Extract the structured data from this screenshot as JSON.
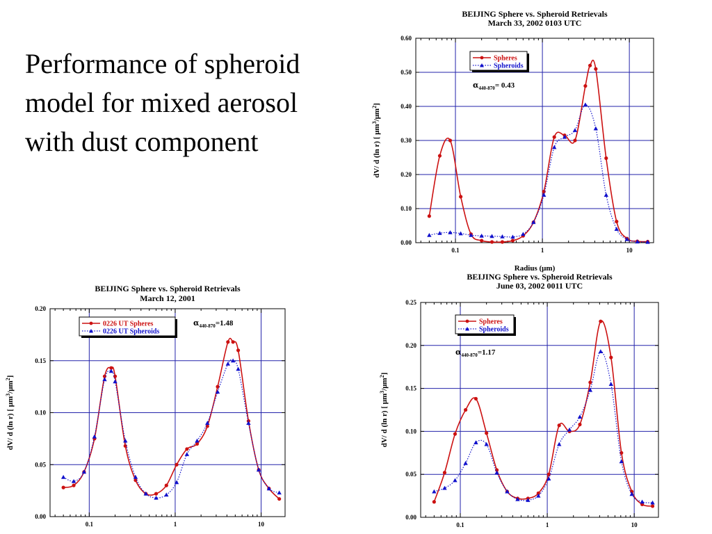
{
  "slide": {
    "title_lines": [
      "Performance of spheroid",
      "model for mixed aerosol",
      "with dust component"
    ]
  },
  "colors": {
    "spheres": "#cc1111",
    "spheroids": "#1111cc",
    "grid": "#2222aa",
    "axes": "#000000"
  },
  "chart_data": [
    {
      "id": "mar33",
      "type": "line",
      "title": [
        "BEIJING   Sphere vs. Spheroid Retrievals",
        "March 33, 2002   0103 UTC"
      ],
      "xlabel": "Radius (μm)",
      "ylabel_parts": [
        "dV/ d (ln r)  [ μm",
        "3",
        "/μm",
        "2",
        "]"
      ],
      "x_scale": "log",
      "xlim": [
        0.035,
        19
      ],
      "ylim": [
        0,
        0.6
      ],
      "yticks": [
        0,
        0.1,
        0.2,
        0.3,
        0.4,
        0.5,
        0.6
      ],
      "ytick_labels": [
        "0.00",
        "0.10",
        "0.20",
        "0.30",
        "0.40",
        "0.50",
        "0.60"
      ],
      "xticks": [
        0.1,
        1,
        10
      ],
      "xtick_labels": [
        "0.1",
        "1",
        "10"
      ],
      "grid": true,
      "legend_position": "top-left",
      "legend": [
        "Spheres",
        "Spheroids"
      ],
      "alpha": {
        "symbol": "α",
        "sub": "440-870",
        "value": "= 0.43"
      },
      "series": [
        {
          "name": "Spheres",
          "style": "solid-line-circle-markers",
          "x": [
            0.05,
            0.066,
            0.087,
            0.115,
            0.151,
            0.2,
            0.263,
            0.346,
            0.456,
            0.6,
            0.79,
            1.04,
            1.37,
            1.8,
            2.37,
            3.12,
            3.53,
            4.11,
            5.41,
            7.13,
            9.38,
            12.35,
            16.26
          ],
          "y": [
            0.078,
            0.255,
            0.3,
            0.135,
            0.025,
            0.006,
            0.002,
            0.002,
            0.006,
            0.02,
            0.06,
            0.15,
            0.31,
            0.315,
            0.3,
            0.46,
            0.52,
            0.51,
            0.248,
            0.062,
            0.012,
            0.004,
            0.003
          ]
        },
        {
          "name": "Spheroids",
          "style": "dotted-line-triangle-markers",
          "x": [
            0.05,
            0.066,
            0.087,
            0.115,
            0.151,
            0.2,
            0.263,
            0.346,
            0.456,
            0.6,
            0.79,
            1.04,
            1.37,
            1.8,
            2.37,
            3.12,
            4.11,
            5.41,
            7.13,
            9.38,
            12.35,
            16.26
          ],
          "y": [
            0.022,
            0.028,
            0.03,
            0.027,
            0.022,
            0.02,
            0.019,
            0.018,
            0.017,
            0.025,
            0.06,
            0.14,
            0.28,
            0.31,
            0.33,
            0.405,
            0.335,
            0.14,
            0.04,
            0.01,
            0.003,
            0.002
          ]
        }
      ]
    },
    {
      "id": "mar12",
      "type": "line",
      "title": [
        "BEIJING   Sphere vs. Spheroid Retrievals",
        "March 12, 2001"
      ],
      "xlabel": "",
      "ylabel_parts": [
        "dV/ d (ln r)  [ μm",
        "3",
        "/μm",
        "2",
        "]"
      ],
      "x_scale": "log",
      "xlim": [
        0.035,
        19
      ],
      "ylim": [
        0,
        0.2
      ],
      "yticks": [
        0,
        0.05,
        0.1,
        0.15,
        0.2
      ],
      "ytick_labels": [
        "0.00",
        "0.05",
        "0.10",
        "0.15",
        "0.20"
      ],
      "xticks": [
        0.1,
        1,
        10
      ],
      "xtick_labels": [
        "0.1",
        "1",
        "10"
      ],
      "grid": true,
      "legend_position": "top-left",
      "legend": [
        "0226 UT  Spheres",
        "0226 UT  Spheroids"
      ],
      "alpha": {
        "symbol": "α",
        "sub": "440-870",
        "value": "=1.48"
      },
      "series": [
        {
          "name": "0226 UT  Spheres",
          "style": "solid-line-circle-markers",
          "x": [
            0.05,
            0.066,
            0.087,
            0.115,
            0.151,
            0.18,
            0.2,
            0.263,
            0.346,
            0.456,
            0.6,
            0.79,
            1.04,
            1.37,
            1.8,
            2.37,
            3.12,
            4.11,
            4.71,
            5.41,
            7.13,
            9.38,
            12.35,
            16.26
          ],
          "y": [
            0.028,
            0.03,
            0.043,
            0.075,
            0.135,
            0.143,
            0.135,
            0.068,
            0.035,
            0.022,
            0.022,
            0.03,
            0.05,
            0.065,
            0.07,
            0.087,
            0.125,
            0.168,
            0.168,
            0.16,
            0.092,
            0.045,
            0.027,
            0.017
          ]
        },
        {
          "name": "0226 UT  Spheroids",
          "style": "dotted-line-triangle-markers",
          "x": [
            0.05,
            0.066,
            0.087,
            0.115,
            0.151,
            0.18,
            0.2,
            0.263,
            0.346,
            0.456,
            0.6,
            0.79,
            1.04,
            1.37,
            1.8,
            2.37,
            3.12,
            4.11,
            4.71,
            5.41,
            7.13,
            9.38,
            12.35,
            16.26
          ],
          "y": [
            0.038,
            0.034,
            0.043,
            0.077,
            0.132,
            0.14,
            0.13,
            0.073,
            0.038,
            0.022,
            0.018,
            0.021,
            0.033,
            0.06,
            0.073,
            0.09,
            0.12,
            0.147,
            0.15,
            0.142,
            0.09,
            0.045,
            0.027,
            0.023
          ]
        }
      ]
    },
    {
      "id": "jun03",
      "type": "line",
      "title": [
        "BEIJING   Sphere vs. Spheroid Retrievals",
        "June 03, 2002   0011 UTC"
      ],
      "xlabel": "",
      "ylabel_parts": [
        "dV/ d (ln r)  [ μm",
        "3",
        "/μm",
        "2",
        "]"
      ],
      "x_scale": "log",
      "xlim": [
        0.035,
        19
      ],
      "ylim": [
        0,
        0.25
      ],
      "yticks": [
        0,
        0.05,
        0.1,
        0.15,
        0.2,
        0.25
      ],
      "ytick_labels": [
        "0.00",
        "0.05",
        "0.10",
        "0.15",
        "0.20",
        "0.25"
      ],
      "xticks": [
        0.1,
        1,
        10
      ],
      "xtick_labels": [
        "0.1",
        "1",
        "10"
      ],
      "grid": true,
      "legend_position": "top-left",
      "legend": [
        "Spheres",
        "Spheroids"
      ],
      "alpha": {
        "symbol": "α",
        "sub": "440-870",
        "value": "=1.17"
      },
      "series": [
        {
          "name": "Spheres",
          "style": "solid-line-circle-markers",
          "x": [
            0.05,
            0.066,
            0.087,
            0.115,
            0.151,
            0.2,
            0.263,
            0.346,
            0.456,
            0.6,
            0.79,
            1.04,
            1.37,
            1.8,
            2.37,
            3.12,
            4.11,
            5.41,
            7.13,
            9.38,
            12.35,
            16.26
          ],
          "y": [
            0.018,
            0.052,
            0.097,
            0.125,
            0.138,
            0.098,
            0.055,
            0.03,
            0.022,
            0.022,
            0.028,
            0.05,
            0.107,
            0.1,
            0.108,
            0.157,
            0.228,
            0.186,
            0.075,
            0.03,
            0.015,
            0.013
          ]
        },
        {
          "name": "Spheroids",
          "style": "dotted-line-triangle-markers",
          "x": [
            0.05,
            0.066,
            0.087,
            0.115,
            0.151,
            0.2,
            0.263,
            0.346,
            0.456,
            0.6,
            0.79,
            1.04,
            1.37,
            1.8,
            2.37,
            3.12,
            4.11,
            5.41,
            7.13,
            9.38,
            12.35,
            16.26
          ],
          "y": [
            0.03,
            0.034,
            0.043,
            0.063,
            0.087,
            0.085,
            0.052,
            0.03,
            0.021,
            0.02,
            0.025,
            0.045,
            0.085,
            0.102,
            0.117,
            0.148,
            0.193,
            0.155,
            0.065,
            0.027,
            0.018,
            0.017
          ]
        }
      ]
    }
  ]
}
